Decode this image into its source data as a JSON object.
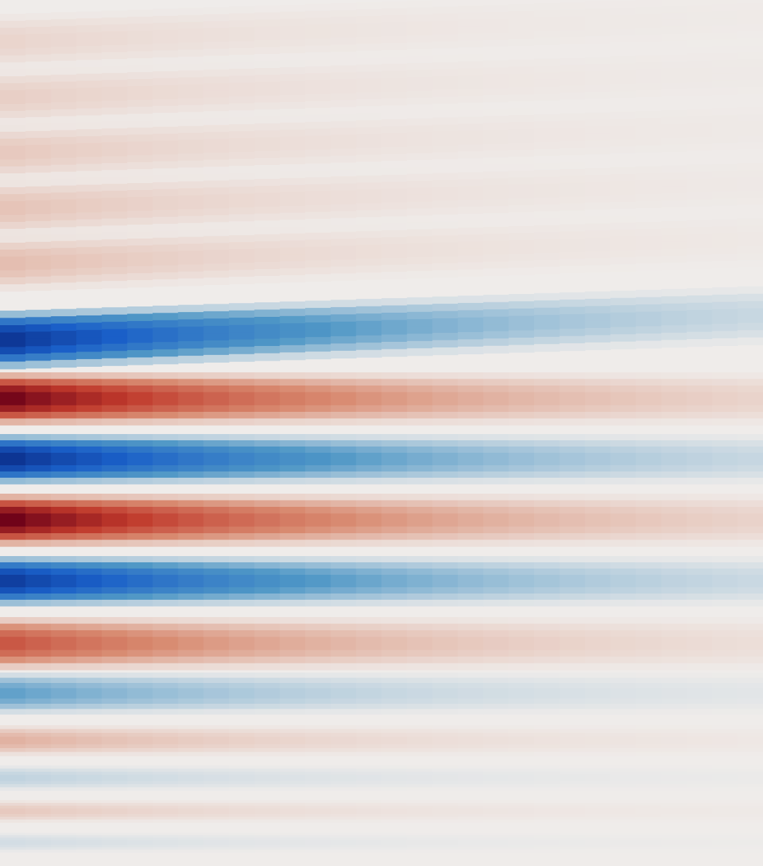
{
  "image": {
    "kind": "diverging colormap heat field",
    "background": "#efecea",
    "palette": {
      "strong_negative": "#0b2e8a",
      "negative": "#1a5fc8",
      "mid_negative": "#4f97c6",
      "neutral": "#efecea",
      "mid_positive": "#d88a70",
      "positive": "#c0392b",
      "strong_positive": "#6b0018"
    },
    "bands": [
      {
        "sign": 1,
        "peak": 0.08
      },
      {
        "sign": 1,
        "peak": 0.1
      },
      {
        "sign": 1,
        "peak": 0.12
      },
      {
        "sign": 1,
        "peak": 0.14
      },
      {
        "sign": 1,
        "peak": 0.16
      },
      {
        "sign": -1,
        "peak": 0.95
      },
      {
        "sign": 1,
        "peak": 0.98
      },
      {
        "sign": -1,
        "peak": 0.97
      },
      {
        "sign": 1,
        "peak": 1.0
      },
      {
        "sign": -1,
        "peak": 0.9
      },
      {
        "sign": 1,
        "peak": 0.55
      },
      {
        "sign": -1,
        "peak": 0.3
      },
      {
        "sign": 1,
        "peak": 0.2
      },
      {
        "sign": -1,
        "peak": 0.1
      },
      {
        "sign": 1,
        "peak": 0.12
      },
      {
        "sign": -1,
        "peak": 0.06
      }
    ],
    "decay_along_columns": 0.92
  }
}
